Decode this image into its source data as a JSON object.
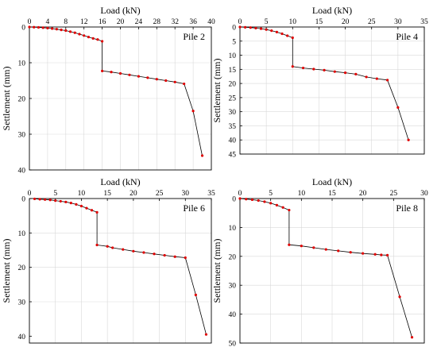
{
  "chart_data": [
    {
      "type": "line",
      "label": "Pile 2",
      "xlabel": "Load (kN)",
      "ylabel": "Settlement (mm)",
      "xlim": [
        0,
        40
      ],
      "ylim": [
        0,
        40
      ],
      "xticks": [
        0,
        4,
        8,
        12,
        16,
        20,
        24,
        28,
        32,
        36,
        40
      ],
      "yticks": [
        0,
        10,
        20,
        30,
        40
      ],
      "grid": true,
      "x": [
        0,
        1,
        2,
        3,
        4,
        5,
        6,
        7,
        8,
        9,
        10,
        11,
        12,
        13,
        14,
        15,
        16,
        16,
        18,
        20,
        22,
        24,
        26,
        28,
        30,
        32,
        34,
        36,
        38
      ],
      "y": [
        0,
        0.05,
        0.1,
        0.2,
        0.3,
        0.45,
        0.6,
        0.8,
        1.0,
        1.3,
        1.6,
        2.0,
        2.4,
        2.8,
        3.2,
        3.5,
        4.0,
        12.3,
        12.6,
        13.0,
        13.4,
        13.8,
        14.2,
        14.6,
        15.0,
        15.4,
        15.9,
        23.5,
        36.0
      ]
    },
    {
      "type": "line",
      "label": "Pile 4",
      "xlabel": "Load (kN)",
      "ylabel": "Settlement (mm)",
      "xlim": [
        0,
        35
      ],
      "ylim": [
        0,
        45
      ],
      "xticks": [
        0,
        5,
        10,
        15,
        20,
        25,
        30,
        35
      ],
      "yticks": [
        0,
        5,
        10,
        15,
        20,
        25,
        30,
        35,
        40,
        45
      ],
      "grid": true,
      "x": [
        0,
        1,
        2,
        3,
        4,
        5,
        6,
        7,
        8,
        9,
        10,
        10,
        12,
        14,
        16,
        18,
        20,
        22,
        24,
        26,
        28,
        30,
        32
      ],
      "y": [
        0,
        0.1,
        0.2,
        0.4,
        0.6,
        0.9,
        1.3,
        1.8,
        2.4,
        3.1,
        3.8,
        14.0,
        14.5,
        14.9,
        15.3,
        15.8,
        16.2,
        16.7,
        17.7,
        18.3,
        18.8,
        28.5,
        40.0
      ]
    },
    {
      "type": "line",
      "label": "Pile 6",
      "xlabel": "Load (kN)",
      "ylabel": "Settlement (mm)",
      "xlim": [
        0,
        35
      ],
      "ylim": [
        0,
        42
      ],
      "xticks": [
        0,
        5,
        10,
        15,
        20,
        25,
        30,
        35
      ],
      "yticks": [
        0,
        10,
        20,
        30,
        40
      ],
      "grid": true,
      "x": [
        1,
        2,
        3,
        4,
        5,
        6,
        7,
        8,
        9,
        10,
        11,
        12,
        13,
        13,
        15,
        16,
        18,
        20,
        22,
        24,
        26,
        28,
        30,
        32,
        34
      ],
      "y": [
        0.1,
        0.2,
        0.3,
        0.4,
        0.6,
        0.8,
        1.0,
        1.3,
        1.7,
        2.2,
        2.8,
        3.4,
        4.0,
        13.5,
        13.9,
        14.3,
        14.8,
        15.3,
        15.7,
        16.1,
        16.5,
        16.9,
        17.2,
        28.0,
        39.5
      ]
    },
    {
      "type": "line",
      "label": "Pile 8",
      "xlabel": "Load (kN)",
      "ylabel": "Settlement (mm)",
      "xlim": [
        0,
        30
      ],
      "ylim": [
        0,
        50
      ],
      "xticks": [
        0,
        5,
        10,
        15,
        20,
        25,
        30
      ],
      "yticks": [
        0,
        10,
        20,
        30,
        40,
        50
      ],
      "grid": true,
      "x": [
        0,
        1,
        2,
        3,
        4,
        5,
        6,
        7,
        8,
        8,
        10,
        12,
        14,
        16,
        18,
        20,
        22,
        23,
        24,
        26,
        28
      ],
      "y": [
        0,
        0.2,
        0.4,
        0.7,
        1.1,
        1.6,
        2.3,
        3.1,
        4.0,
        16.0,
        16.4,
        17.0,
        17.6,
        18.1,
        18.6,
        19.0,
        19.3,
        19.5,
        19.6,
        34.0,
        48.0
      ]
    }
  ]
}
